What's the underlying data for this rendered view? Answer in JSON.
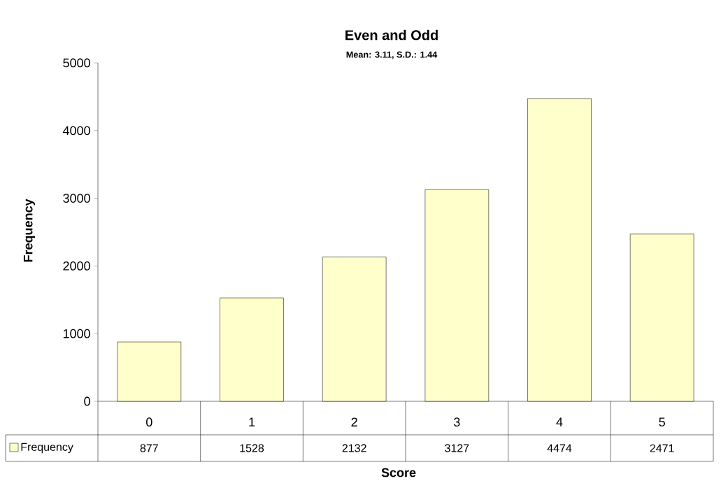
{
  "chart_data": {
    "type": "bar",
    "title": "Even and Odd",
    "subtitle": "Mean: 3.11, S.D.: 1.44",
    "xlabel": "Score",
    "ylabel": "Frequency",
    "categories": [
      "0",
      "1",
      "2",
      "3",
      "4",
      "5"
    ],
    "series": [
      {
        "name": "Frequency",
        "color": "#ffffcc",
        "values": [
          877,
          1528,
          2132,
          3127,
          4474,
          2471
        ]
      }
    ],
    "ylim": [
      0,
      5000
    ],
    "yticks": [
      0,
      1000,
      2000,
      3000,
      4000,
      5000
    ],
    "data_labels": true,
    "legend": "bottom"
  }
}
